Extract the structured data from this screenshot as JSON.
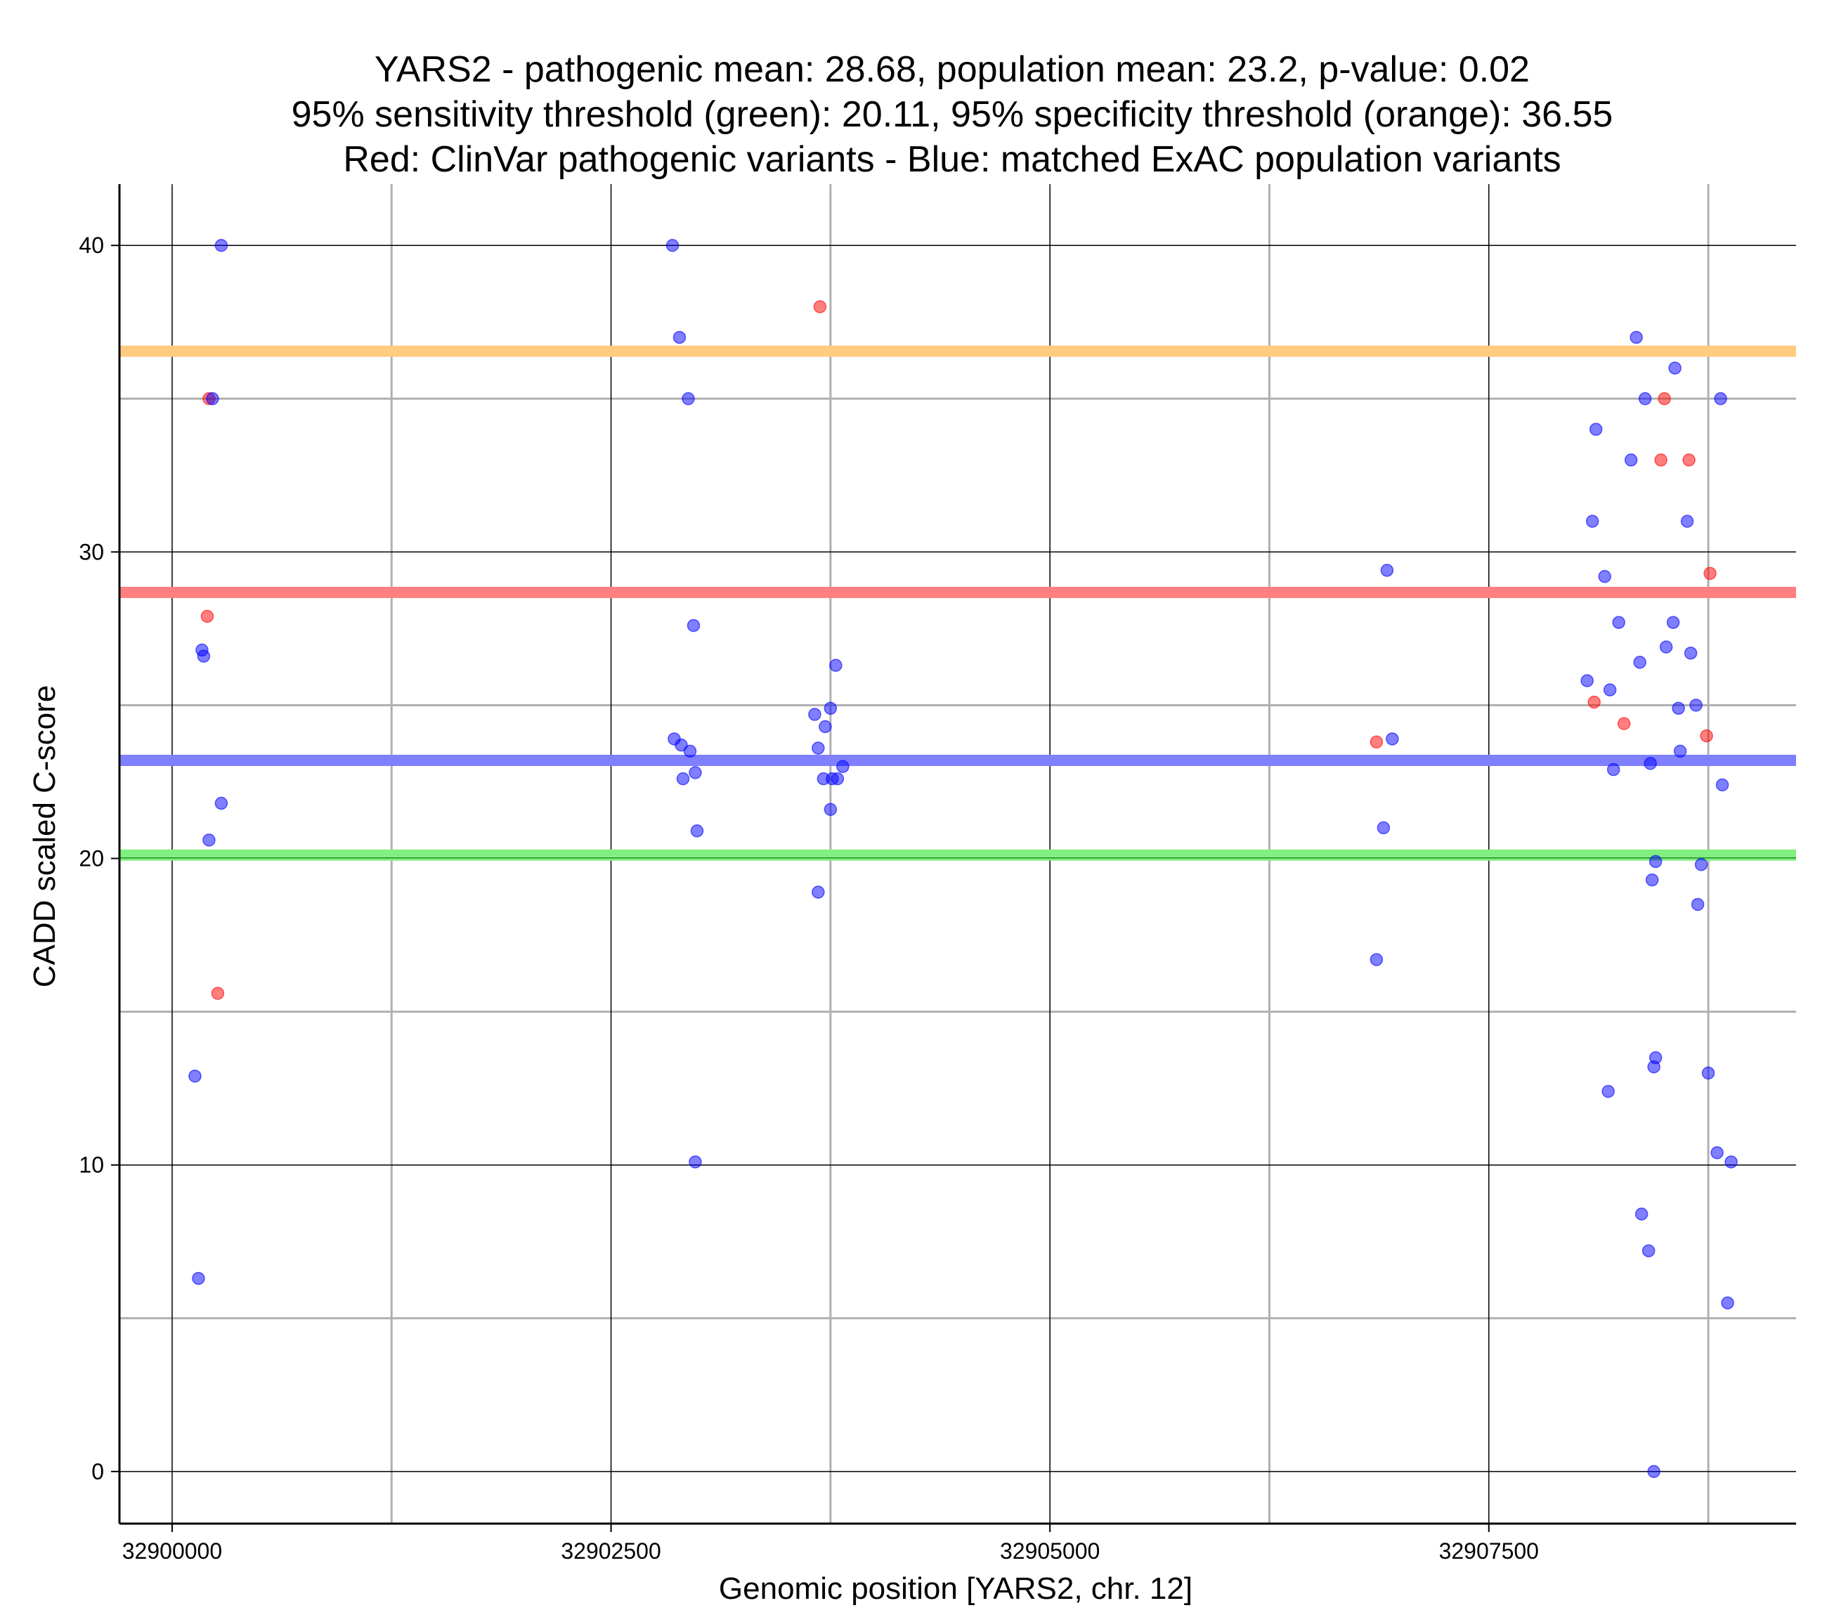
{
  "chart_data": {
    "type": "scatter",
    "title_lines": [
      "YARS2 - pathogenic mean: 28.68, population mean: 23.2, p-value: 0.02",
      "95% sensitivity threshold (green): 20.11, 95% specificity threshold (orange): 36.55",
      "Red: ClinVar pathogenic variants - Blue: matched ExAC population variants"
    ],
    "xlabel": "Genomic position [YARS2, chr. 12]",
    "ylabel": "CADD scaled C-score",
    "xlim": [
      32899700,
      32909250
    ],
    "ylim": [
      -1.7,
      42
    ],
    "x_ticks": [
      32900000,
      32902500,
      32905000,
      32907500
    ],
    "x_minor": [
      32901250,
      32903750,
      32906250,
      32908750
    ],
    "y_ticks": [
      0,
      10,
      20,
      30,
      40
    ],
    "y_minor": [
      5,
      15,
      25,
      35
    ],
    "x_tick_labels": [
      "32900000",
      "32902500",
      "32905000",
      "32907500"
    ],
    "y_tick_labels": [
      "0",
      "10",
      "20",
      "30",
      "40"
    ],
    "grid": true,
    "reference_lines": [
      {
        "name": "specificity threshold",
        "value": 36.55,
        "color": "#ffcc80"
      },
      {
        "name": "pathogenic mean",
        "value": 28.68,
        "color": "#ff8080"
      },
      {
        "name": "population mean",
        "value": 23.2,
        "color": "#8080ff"
      },
      {
        "name": "sensitivity threshold",
        "value": 20.11,
        "color": "#80f080"
      }
    ],
    "series": [
      {
        "name": "ClinVar pathogenic variants",
        "color": "#ff0000",
        "points": [
          [
            32900200,
            27.9
          ],
          [
            32900210,
            35.0
          ],
          [
            32900260,
            15.6
          ],
          [
            32903690,
            38.0
          ],
          [
            32906860,
            23.8
          ],
          [
            32908100,
            25.1
          ],
          [
            32908270,
            24.4
          ],
          [
            32908480,
            33.0
          ],
          [
            32908500,
            35.0
          ],
          [
            32908640,
            33.0
          ],
          [
            32908740,
            24.0
          ],
          [
            32908760,
            29.3
          ]
        ]
      },
      {
        "name": "matched ExAC population variants",
        "color": "#0000ff",
        "points": [
          [
            32900280,
            40.0
          ],
          [
            32900230,
            35.0
          ],
          [
            32900170,
            26.8
          ],
          [
            32900180,
            26.6
          ],
          [
            32900280,
            21.8
          ],
          [
            32900210,
            20.6
          ],
          [
            32900130,
            12.9
          ],
          [
            32900150,
            6.3
          ],
          [
            32902850,
            40.0
          ],
          [
            32902890,
            37.0
          ],
          [
            32902940,
            35.0
          ],
          [
            32902970,
            27.6
          ],
          [
            32902860,
            23.9
          ],
          [
            32902900,
            23.7
          ],
          [
            32902950,
            23.5
          ],
          [
            32902910,
            22.6
          ],
          [
            32902980,
            22.8
          ],
          [
            32902990,
            20.9
          ],
          [
            32902980,
            10.1
          ],
          [
            32903660,
            24.7
          ],
          [
            32903680,
            23.6
          ],
          [
            32903720,
            24.3
          ],
          [
            32903750,
            24.9
          ],
          [
            32903780,
            26.3
          ],
          [
            32903710,
            22.6
          ],
          [
            32903760,
            22.6
          ],
          [
            32903790,
            22.6
          ],
          [
            32903820,
            23.0
          ],
          [
            32903750,
            21.6
          ],
          [
            32903680,
            18.9
          ],
          [
            32906920,
            29.4
          ],
          [
            32906950,
            23.9
          ],
          [
            32906900,
            21.0
          ],
          [
            32906860,
            16.7
          ],
          [
            32908060,
            25.8
          ],
          [
            32908090,
            31.0
          ],
          [
            32908110,
            34.0
          ],
          [
            32908160,
            29.2
          ],
          [
            32908190,
            25.5
          ],
          [
            32908240,
            27.7
          ],
          [
            32908210,
            22.9
          ],
          [
            32908180,
            12.4
          ],
          [
            32908310,
            33.0
          ],
          [
            32908340,
            37.0
          ],
          [
            32908360,
            26.4
          ],
          [
            32908390,
            35.0
          ],
          [
            32908370,
            8.4
          ],
          [
            32908410,
            7.2
          ],
          [
            32908420,
            23.1
          ],
          [
            32908430,
            19.3
          ],
          [
            32908450,
            19.9
          ],
          [
            32908440,
            13.2
          ],
          [
            32908450,
            13.5
          ],
          [
            32908440,
            0.0
          ],
          [
            32908510,
            26.9
          ],
          [
            32908550,
            27.7
          ],
          [
            32908560,
            36.0
          ],
          [
            32908580,
            24.9
          ],
          [
            32908590,
            23.5
          ],
          [
            32908630,
            31.0
          ],
          [
            32908650,
            26.7
          ],
          [
            32908680,
            25.0
          ],
          [
            32908690,
            18.5
          ],
          [
            32908710,
            19.8
          ],
          [
            32908750,
            13.0
          ],
          [
            32908800,
            10.4
          ],
          [
            32908820,
            35.0
          ],
          [
            32908830,
            22.4
          ],
          [
            32908860,
            5.5
          ],
          [
            32908880,
            10.1
          ]
        ]
      }
    ]
  }
}
